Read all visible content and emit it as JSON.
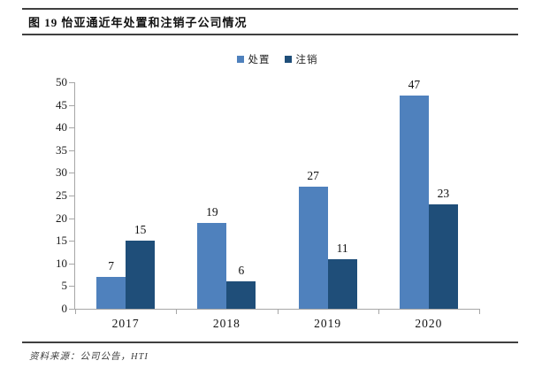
{
  "figure": {
    "title": "图 19 怡亚通近年处置和注销子公司情况",
    "source_note": "资料来源：公司公告，HTI"
  },
  "chart_data": {
    "type": "bar",
    "categories": [
      "2017",
      "2018",
      "2019",
      "2020"
    ],
    "series": [
      {
        "name": "处置",
        "color": "#4F81BD",
        "values": [
          7,
          19,
          27,
          47
        ]
      },
      {
        "name": "注销",
        "color": "#1F4E79",
        "values": [
          15,
          6,
          11,
          23
        ]
      }
    ],
    "ylim": [
      0,
      50
    ],
    "ytick_step": 5,
    "xlabel": "",
    "ylabel": "",
    "grid": false,
    "legend_position": "top",
    "value_labels": true,
    "axis_color": "#A6A6A6"
  }
}
